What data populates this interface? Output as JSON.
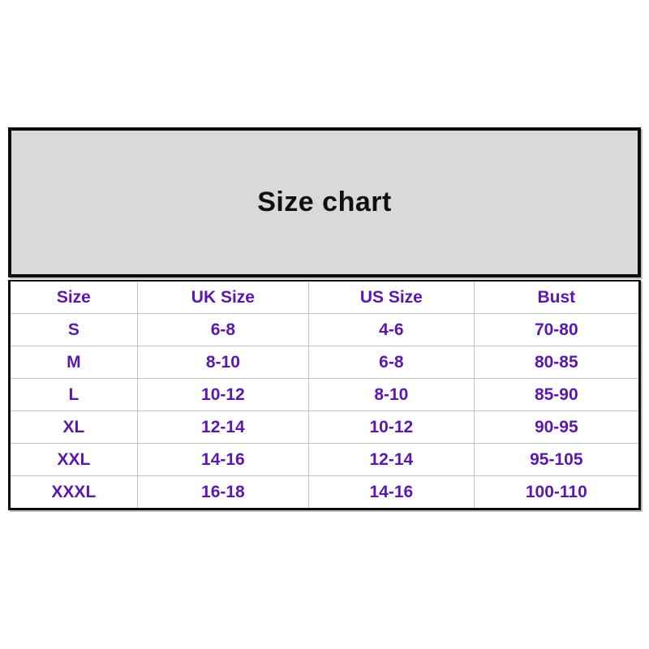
{
  "chart_data": {
    "type": "table",
    "title": "Size chart",
    "columns": [
      "Size",
      "UK Size",
      "US Size",
      "Bust"
    ],
    "rows": [
      [
        "S",
        "6-8",
        "4-6",
        "70-80"
      ],
      [
        "M",
        "8-10",
        "6-8",
        "80-85"
      ],
      [
        "L",
        "10-12",
        "8-10",
        "85-90"
      ],
      [
        "XL",
        "12-14",
        "10-12",
        "90-95"
      ],
      [
        "XXL",
        "14-16",
        "12-14",
        "95-105"
      ],
      [
        "XXXL",
        "16-18",
        "14-16",
        "100-110"
      ]
    ]
  },
  "colors": {
    "page_bg": "#ffffff",
    "banner_bg": "#d9d9d9",
    "border_black": "#0b0b0b",
    "grid_line": "#c2c2c2",
    "table_text": "#5a18ad",
    "title_text": "#101010"
  }
}
